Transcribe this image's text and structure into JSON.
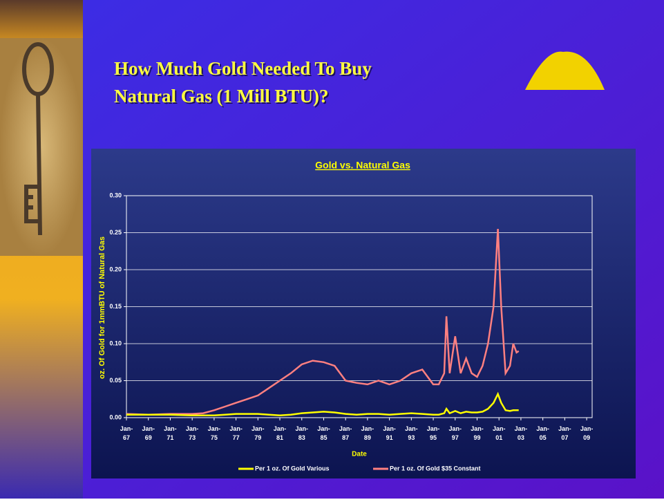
{
  "slide": {
    "title_lines": [
      "How Much Gold Needed To Buy",
      "Natural Gas (1 Mill BTU)?"
    ]
  },
  "chart_data": {
    "type": "line",
    "title": "Gold vs. Natural Gas",
    "x_label": "Date",
    "y_label": "oz. Of Gold for 1mmBTU of Natural Gas",
    "x": [
      1967,
      1969,
      1971,
      1973,
      1974,
      1975,
      1976,
      1977,
      1978,
      1979,
      1980,
      1981,
      1982,
      1983,
      1984,
      1985,
      1986,
      1987,
      1988,
      1989,
      1990,
      1991,
      1992,
      1993,
      1994,
      1995,
      1995.5,
      1996,
      1996.2,
      1996.5,
      1997,
      1997.5,
      1998,
      1998.5,
      1999,
      1999.5,
      2000,
      2000.5,
      2000.9,
      2001.2,
      2001.6,
      2002,
      2002.3,
      2002.6,
      2002.8
    ],
    "series": [
      {
        "name": "Per 1 oz. Of Gold Various",
        "color": "#ffff00",
        "values": [
          0.004,
          0.004,
          0.004,
          0.003,
          0.003,
          0.003,
          0.004,
          0.005,
          0.005,
          0.005,
          0.004,
          0.003,
          0.004,
          0.006,
          0.007,
          0.008,
          0.007,
          0.005,
          0.004,
          0.005,
          0.005,
          0.004,
          0.005,
          0.006,
          0.005,
          0.004,
          0.004,
          0.006,
          0.012,
          0.006,
          0.009,
          0.006,
          0.008,
          0.007,
          0.007,
          0.008,
          0.012,
          0.02,
          0.032,
          0.02,
          0.01,
          0.009,
          0.01,
          0.01,
          0.01
        ]
      },
      {
        "name": "Per 1 oz. Of Gold $35 Constant",
        "color": "#ff8080",
        "values": [
          0.005,
          0.004,
          0.005,
          0.005,
          0.006,
          0.01,
          0.015,
          0.02,
          0.025,
          0.03,
          0.04,
          0.05,
          0.06,
          0.072,
          0.077,
          0.075,
          0.07,
          0.05,
          0.047,
          0.045,
          0.05,
          0.045,
          0.05,
          0.06,
          0.065,
          0.045,
          0.045,
          0.06,
          0.137,
          0.06,
          0.11,
          0.06,
          0.08,
          0.06,
          0.055,
          0.07,
          0.1,
          0.15,
          0.255,
          0.15,
          0.06,
          0.07,
          0.1,
          0.088,
          0.09
        ]
      }
    ],
    "xlim": [
      1967,
      2009.5
    ],
    "xticks": [
      {
        "value": 1967,
        "label": "Jan-67"
      },
      {
        "value": 1969,
        "label": "Jan-69"
      },
      {
        "value": 1971,
        "label": "Jan-71"
      },
      {
        "value": 1973,
        "label": "Jan-73"
      },
      {
        "value": 1975,
        "label": "Jan-75"
      },
      {
        "value": 1977,
        "label": "Jan-77"
      },
      {
        "value": 1979,
        "label": "Jan-79"
      },
      {
        "value": 1981,
        "label": "Jan-81"
      },
      {
        "value": 1983,
        "label": "Jan-83"
      },
      {
        "value": 1985,
        "label": "Jan-85"
      },
      {
        "value": 1987,
        "label": "Jan-87"
      },
      {
        "value": 1989,
        "label": "Jan-89"
      },
      {
        "value": 1991,
        "label": "Jan-91"
      },
      {
        "value": 1993,
        "label": "Jan-93"
      },
      {
        "value": 1995,
        "label": "Jan-95"
      },
      {
        "value": 1997,
        "label": "Jan-97"
      },
      {
        "value": 1999,
        "label": "Jan-99"
      },
      {
        "value": 2001,
        "label": "Jan-01"
      },
      {
        "value": 2003,
        "label": "Jan-03"
      },
      {
        "value": 2005,
        "label": "Jan-05"
      },
      {
        "value": 2007,
        "label": "Jan-07"
      },
      {
        "value": 2009,
        "label": "Jan-09"
      }
    ],
    "ylim": [
      0,
      0.3
    ],
    "yticks": [
      {
        "value": 0,
        "label": "0.00"
      },
      {
        "value": 0.05,
        "label": "0.05"
      },
      {
        "value": 0.1,
        "label": "0.10"
      },
      {
        "value": 0.15,
        "label": "0.15"
      },
      {
        "value": 0.2,
        "label": "0.20"
      },
      {
        "value": 0.25,
        "label": "0.25"
      },
      {
        "value": 0.3,
        "label": "0.30"
      }
    ],
    "grid": true,
    "legend": "bottom"
  }
}
